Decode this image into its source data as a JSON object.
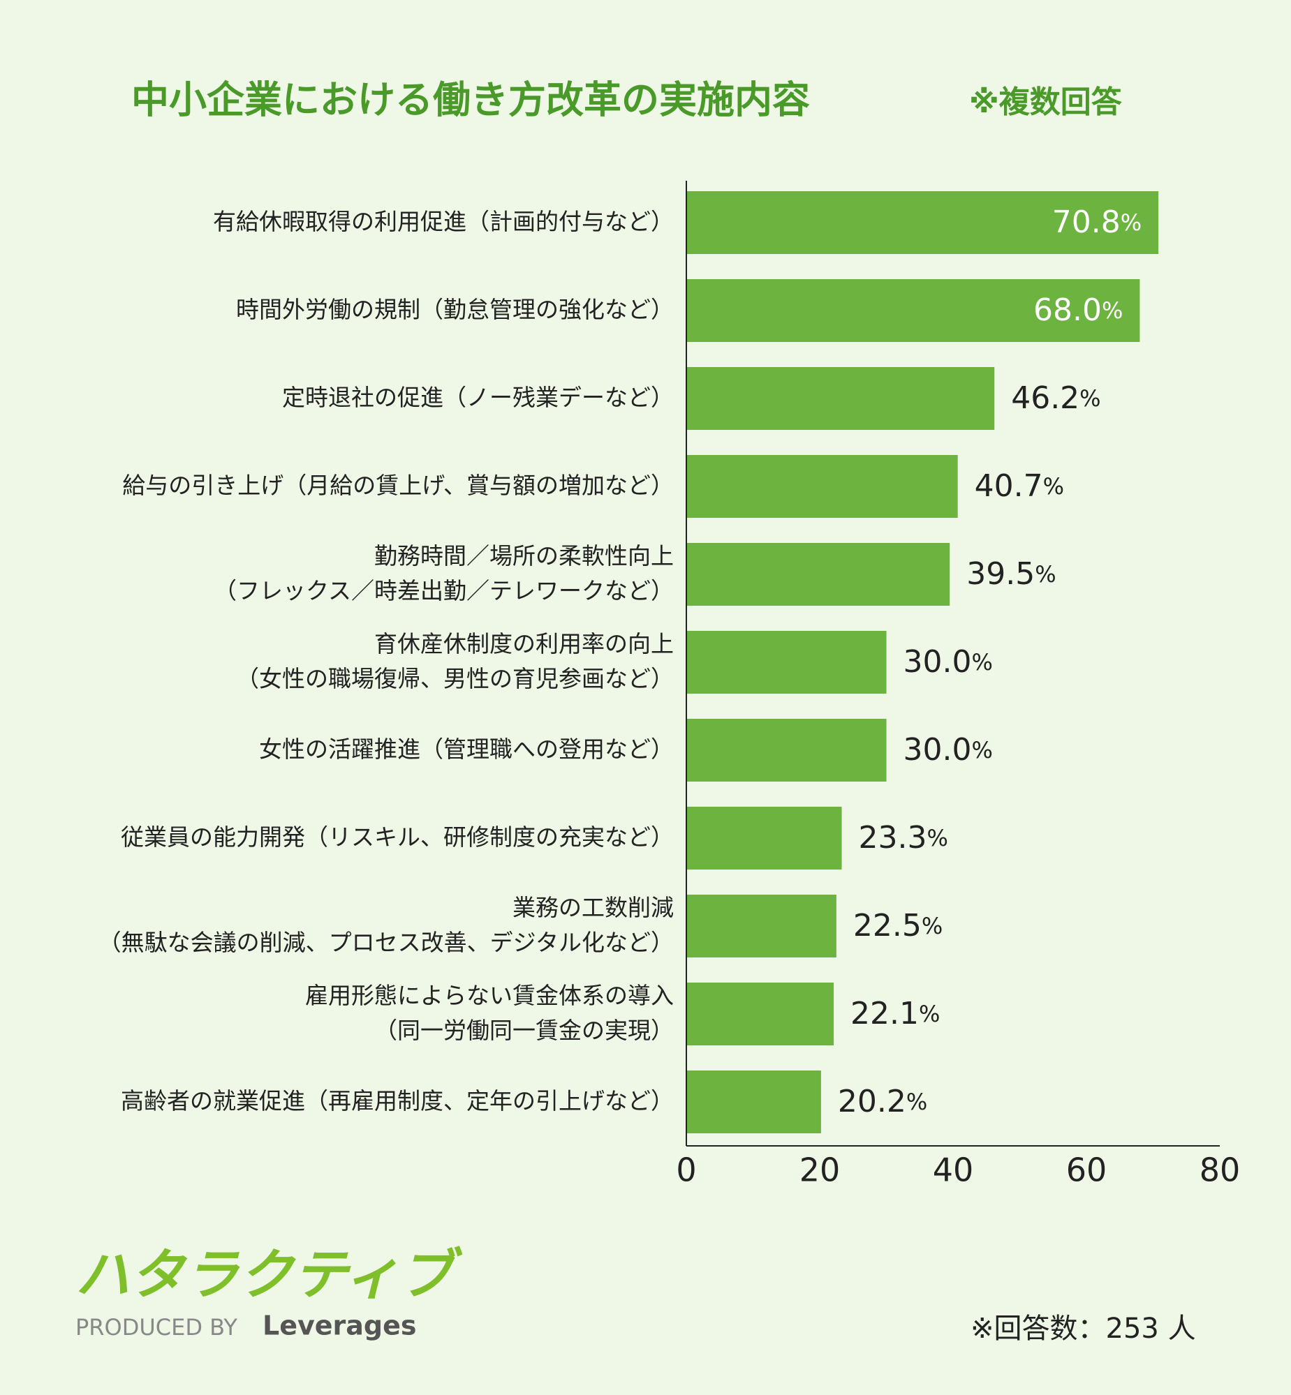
{
  "chart_data": {
    "type": "bar",
    "orientation": "horizontal",
    "title": "中小企業における働き方改革の実施内容",
    "subtitle": "※複数回答",
    "categories": [
      "有給休暇取得の利用促進（計画的付与など）",
      "時間外労働の規制（勤怠管理の強化など）",
      "定時退社の促進（ノー残業デーなど）",
      "給与の引き上げ（月給の賃上げ、賞与額の増加など）",
      "勤務時間／場所の柔軟性向上\n（フレックス／時差出勤／テレワークなど）",
      "育休産休制度の利用率の向上\n（女性の職場復帰、男性の育児参画など）",
      "女性の活躍推進（管理職への登用など）",
      "従業員の能力開発（リスキル、研修制度の充実など）",
      "業務の工数削減\n（無駄な会議の削減、プロセス改善、デジタル化など）",
      "雇用形態によらない賃金体系の導入\n（同一労働同一賃金の実現）",
      "高齢者の就業促進（再雇用制度、定年の引上げなど）"
    ],
    "values": [
      70.8,
      68.0,
      46.2,
      40.7,
      39.5,
      30.0,
      30.0,
      23.3,
      22.5,
      22.1,
      20.2
    ],
    "value_labels": [
      "70.8%",
      "68.0%",
      "46.2%",
      "40.7%",
      "39.5%",
      "30.0%",
      "30.0%",
      "23.3%",
      "22.5%",
      "22.1%",
      "20.2%"
    ],
    "color": "#6db33f",
    "xlim": [
      0,
      80
    ],
    "xticks": [
      0,
      20,
      40,
      60,
      80
    ],
    "grid": false,
    "note": "※回答数：253 人",
    "logo": "ハタラクティブ",
    "produced_by": "PRODUCED BY",
    "brand": "Leverages"
  }
}
